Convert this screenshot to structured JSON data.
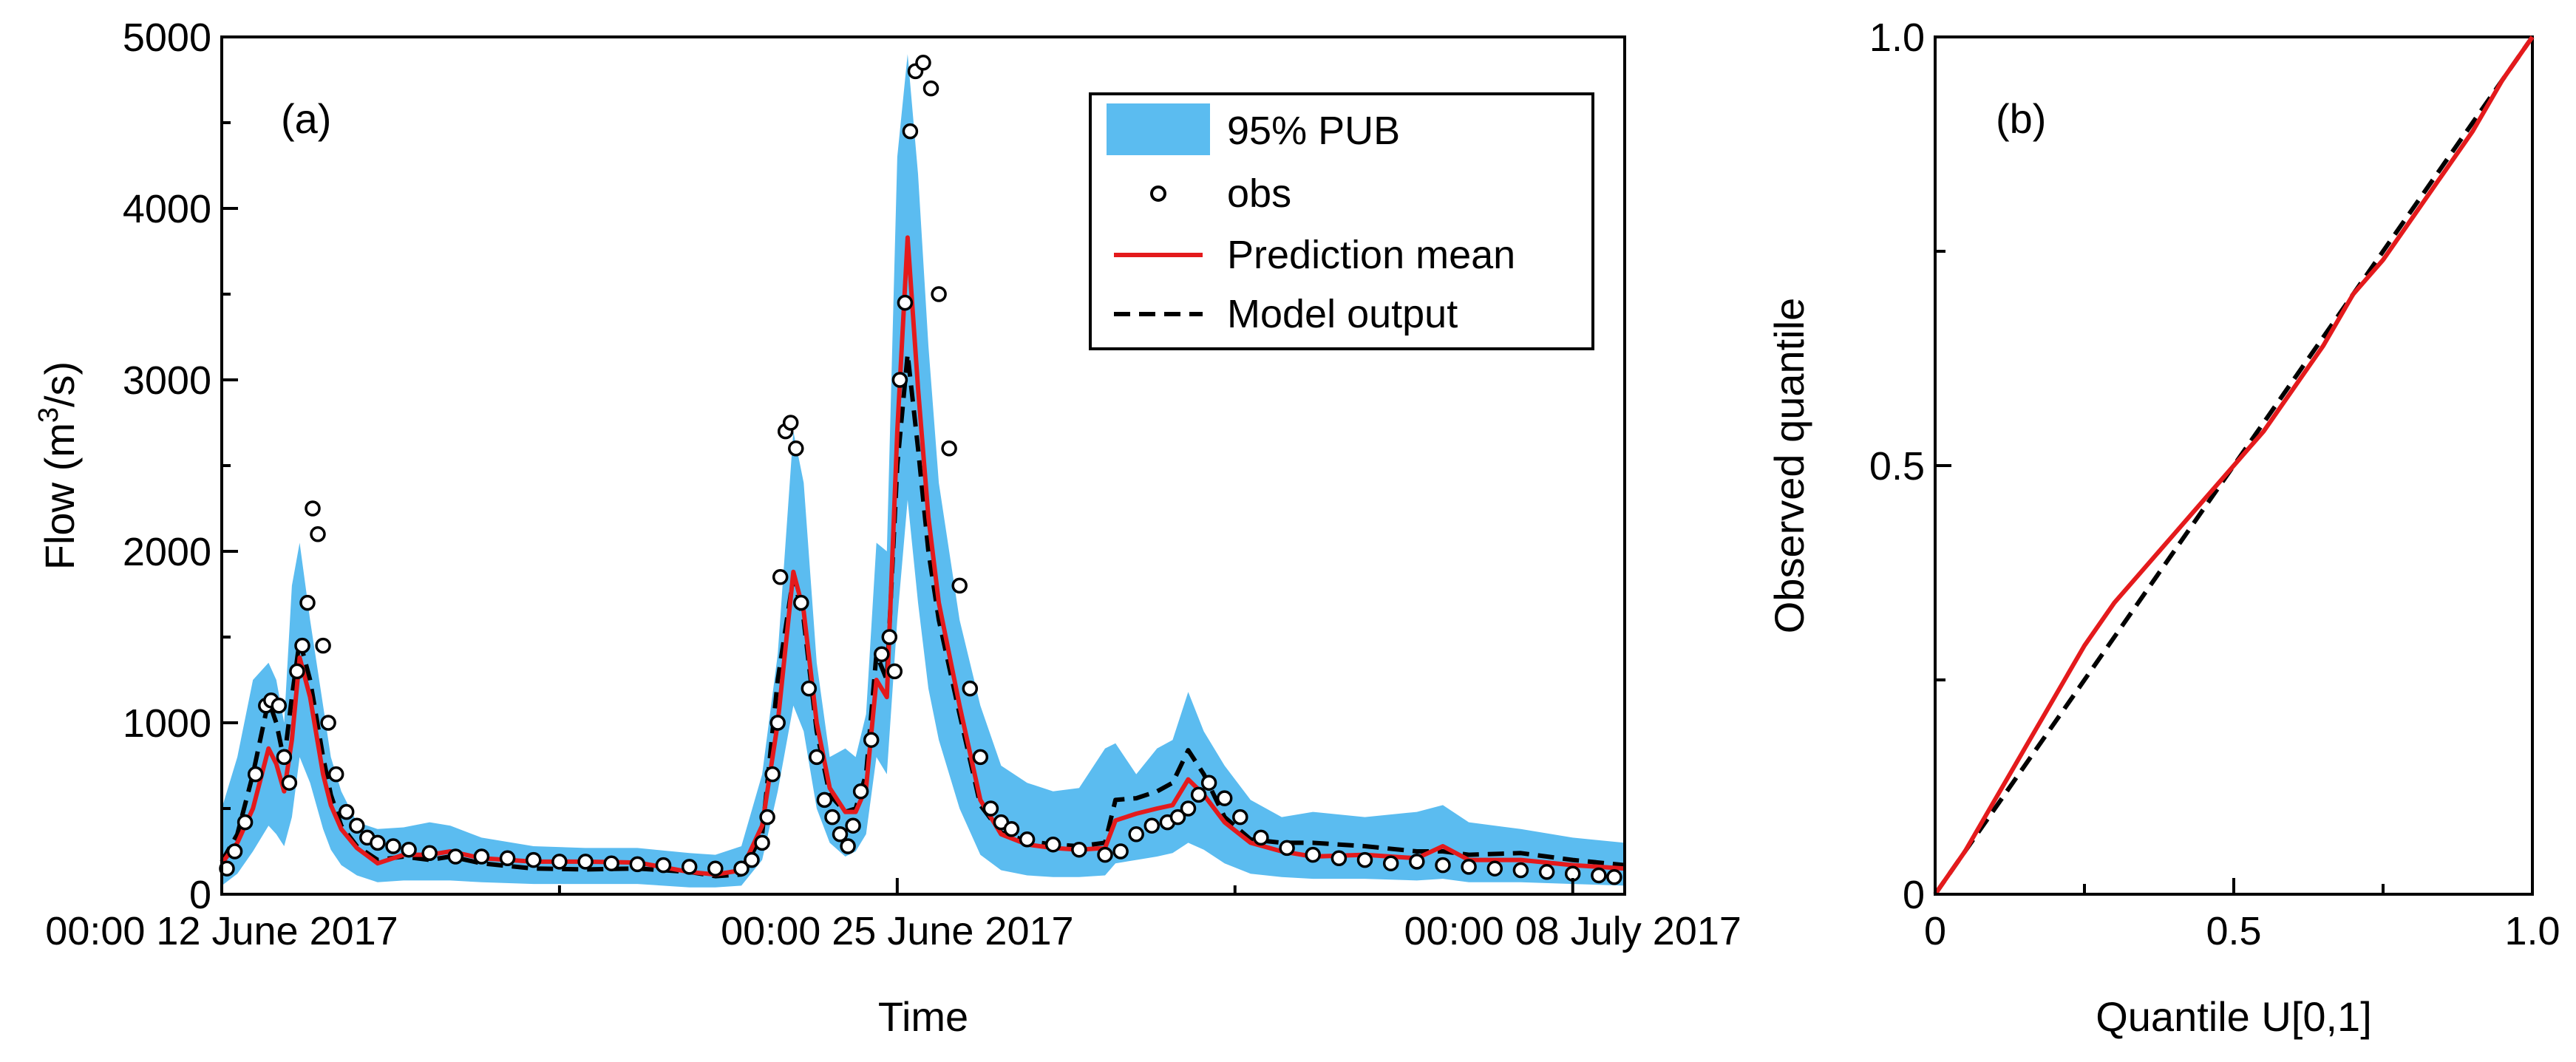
{
  "chart_data": [
    {
      "panel_label": "(a)",
      "type": "line",
      "xlabel": "Time",
      "ylabel": "Flow (m³/s)",
      "ylabel_parts": {
        "pre": "Flow (m",
        "sup": "3",
        "post": "/s)"
      },
      "x_unit": "days since 00:00 12 June 2017",
      "xlim": [
        0,
        27
      ],
      "ylim": [
        0,
        5000
      ],
      "yticks": [
        0,
        1000,
        2000,
        3000,
        4000,
        5000
      ],
      "xticks": [
        {
          "value": 0,
          "label": "00:00 12 June 2017"
        },
        {
          "value": 13,
          "label": "00:00 25 June 2017"
        },
        {
          "value": 26,
          "label": "00:00 08 July 2017"
        }
      ],
      "legend_position": "top-right",
      "legend": [
        "95% PUB",
        "obs",
        "Prediction mean",
        "Model output"
      ],
      "colors": {
        "band": "#5bbcf0",
        "mean": "#e41a1c",
        "model": "#000000",
        "obs_fill": "#ffffff",
        "obs_edge": "#000000"
      },
      "x": [
        0,
        0.3,
        0.6,
        0.9,
        1.05,
        1.2,
        1.35,
        1.5,
        1.7,
        1.95,
        2.1,
        2.3,
        2.6,
        3.0,
        3.5,
        4.0,
        4.4,
        5.0,
        6.0,
        7.0,
        8.0,
        9.0,
        9.5,
        10.0,
        10.4,
        10.7,
        11.0,
        11.2,
        11.45,
        11.7,
        12.0,
        12.2,
        12.4,
        12.6,
        12.8,
        13.0,
        13.2,
        13.4,
        13.6,
        13.8,
        14.2,
        14.6,
        15.0,
        15.5,
        16.0,
        16.5,
        17.0,
        17.2,
        17.6,
        18.0,
        18.3,
        18.6,
        18.9,
        19.3,
        19.8,
        20.4,
        21.0,
        22.0,
        23.0,
        23.5,
        24.0,
        25.0,
        26.0,
        27.0
      ],
      "series": [
        {
          "name": "Prediction mean",
          "values": [
            180,
            300,
            500,
            850,
            760,
            600,
            900,
            1380,
            1150,
            700,
            520,
            380,
            270,
            180,
            230,
            230,
            250,
            210,
            190,
            190,
            185,
            130,
            115,
            140,
            400,
            1000,
            1880,
            1650,
            1000,
            620,
            480,
            480,
            620,
            1250,
            1150,
            2700,
            3830,
            2950,
            2200,
            1700,
            1100,
            550,
            350,
            290,
            270,
            260,
            270,
            430,
            470,
            500,
            520,
            670,
            580,
            420,
            300,
            250,
            220,
            230,
            210,
            280,
            200,
            200,
            170,
            150
          ]
        },
        {
          "name": "Model output",
          "values": [
            190,
            350,
            700,
            1130,
            1000,
            780,
            1150,
            1480,
            1250,
            800,
            580,
            400,
            280,
            200,
            220,
            200,
            220,
            180,
            150,
            145,
            150,
            130,
            105,
            115,
            350,
            1250,
            1850,
            1600,
            950,
            580,
            480,
            500,
            700,
            1400,
            1250,
            2500,
            3150,
            2600,
            2000,
            1600,
            1050,
            520,
            360,
            310,
            290,
            280,
            300,
            550,
            560,
            600,
            650,
            840,
            700,
            450,
            320,
            300,
            300,
            280,
            250,
            250,
            230,
            240,
            200,
            170
          ]
        },
        {
          "name": "95% PUB upper",
          "values": [
            500,
            800,
            1250,
            1350,
            1250,
            1000,
            1800,
            2050,
            1600,
            1100,
            800,
            600,
            420,
            380,
            390,
            420,
            400,
            330,
            280,
            270,
            270,
            240,
            230,
            280,
            700,
            1400,
            2700,
            2400,
            1350,
            800,
            850,
            800,
            1050,
            2050,
            2000,
            4300,
            4900,
            4200,
            3200,
            2400,
            1600,
            1100,
            750,
            650,
            600,
            620,
            850,
            880,
            700,
            850,
            900,
            1180,
            950,
            750,
            550,
            450,
            480,
            450,
            480,
            520,
            420,
            380,
            330,
            300
          ]
        },
        {
          "name": "95% PUB lower",
          "values": [
            50,
            120,
            250,
            400,
            350,
            280,
            450,
            800,
            650,
            380,
            260,
            170,
            110,
            70,
            80,
            80,
            80,
            70,
            60,
            60,
            60,
            40,
            40,
            50,
            200,
            600,
            1100,
            950,
            500,
            300,
            220,
            250,
            350,
            800,
            700,
            1600,
            2300,
            1700,
            1200,
            900,
            500,
            230,
            140,
            110,
            100,
            100,
            110,
            180,
            200,
            220,
            240,
            300,
            260,
            180,
            120,
            100,
            90,
            90,
            80,
            90,
            70,
            70,
            60,
            50
          ]
        }
      ],
      "obs": {
        "x": [
          0.1,
          0.25,
          0.45,
          0.65,
          0.85,
          0.95,
          1.1,
          1.2,
          1.3,
          1.45,
          1.55,
          1.65,
          1.75,
          1.85,
          1.95,
          2.05,
          2.2,
          2.4,
          2.6,
          2.8,
          3.0,
          3.3,
          3.6,
          4.0,
          4.5,
          5.0,
          5.5,
          6.0,
          6.5,
          7.0,
          7.5,
          8.0,
          8.5,
          9.0,
          9.5,
          10.0,
          10.2,
          10.4,
          10.5,
          10.6,
          10.7,
          10.75,
          10.85,
          10.95,
          11.05,
          11.15,
          11.3,
          11.45,
          11.6,
          11.75,
          11.9,
          12.05,
          12.15,
          12.3,
          12.5,
          12.7,
          12.85,
          12.95,
          13.05,
          13.15,
          13.25,
          13.35,
          13.5,
          13.65,
          13.8,
          14.0,
          14.2,
          14.4,
          14.6,
          14.8,
          15.0,
          15.2,
          15.5,
          16.0,
          16.5,
          17.0,
          17.3,
          17.6,
          17.9,
          18.2,
          18.4,
          18.6,
          18.8,
          19.0,
          19.3,
          19.6,
          20.0,
          20.5,
          21.0,
          21.5,
          22.0,
          22.5,
          23.0,
          23.5,
          24.0,
          24.5,
          25.0,
          25.5,
          26.0,
          26.5,
          26.8
        ],
        "y": [
          150,
          250,
          420,
          700,
          1100,
          1130,
          1100,
          800,
          650,
          1300,
          1450,
          1700,
          2250,
          2100,
          1450,
          1000,
          700,
          480,
          400,
          330,
          300,
          280,
          260,
          240,
          220,
          220,
          210,
          200,
          190,
          190,
          180,
          175,
          170,
          160,
          150,
          150,
          200,
          300,
          450,
          700,
          1000,
          1850,
          2700,
          2750,
          2600,
          1700,
          1200,
          800,
          550,
          450,
          350,
          280,
          400,
          600,
          900,
          1400,
          1500,
          1300,
          3000,
          3450,
          4450,
          4800,
          4850,
          4700,
          3500,
          2600,
          1800,
          1200,
          800,
          500,
          420,
          380,
          320,
          290,
          260,
          230,
          250,
          350,
          400,
          420,
          450,
          500,
          580,
          650,
          560,
          450,
          330,
          270,
          230,
          210,
          200,
          180,
          190,
          170,
          160,
          150,
          140,
          130,
          120,
          110,
          100
        ]
      }
    },
    {
      "panel_label": "(b)",
      "type": "line",
      "xlabel": "Quantile U[0,1]",
      "ylabel": "Observed quantile",
      "xlim": [
        0,
        1
      ],
      "ylim": [
        0,
        1
      ],
      "xticks": [
        {
          "value": 0,
          "label": "0"
        },
        {
          "value": 0.5,
          "label": "0.5"
        },
        {
          "value": 1,
          "label": "1.0"
        }
      ],
      "yticks": [
        {
          "value": 0,
          "label": "0"
        },
        {
          "value": 0.5,
          "label": "0.5"
        },
        {
          "value": 1,
          "label": "1.0"
        }
      ],
      "minor_yticks": [
        0.25,
        0.75
      ],
      "colors": {
        "qq": "#e41a1c",
        "ref": "#000000"
      },
      "series": [
        {
          "name": "Q-Q curve",
          "x": [
            0,
            0.05,
            0.1,
            0.15,
            0.2,
            0.25,
            0.3,
            0.35,
            0.4,
            0.45,
            0.5,
            0.55,
            0.6,
            0.65,
            0.7,
            0.75,
            0.8,
            0.85,
            0.9,
            0.95,
            1.0
          ],
          "y": [
            0,
            0.05,
            0.11,
            0.17,
            0.23,
            0.29,
            0.34,
            0.38,
            0.42,
            0.46,
            0.5,
            0.54,
            0.59,
            0.64,
            0.7,
            0.74,
            0.79,
            0.84,
            0.89,
            0.95,
            1.0
          ]
        },
        {
          "name": "1:1 line",
          "x": [
            0,
            1
          ],
          "y": [
            0,
            1
          ]
        }
      ]
    }
  ]
}
